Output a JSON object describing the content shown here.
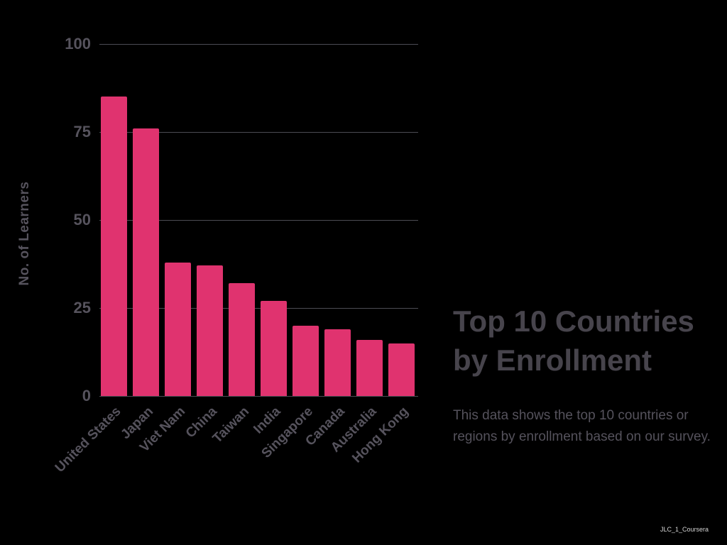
{
  "page": {
    "background": "#000000"
  },
  "info_panel": {
    "title_lines": [
      "Top 10 Countries",
      "by Enrollment"
    ],
    "description_lines": [
      "This data shows the top 10 countries or",
      "regions by enrollment based on our survey."
    ]
  },
  "watermark": "JLC_1_Coursera",
  "chart_data": {
    "type": "bar",
    "title": "Top 10 Countries by Enrollment",
    "subtitle": "This data shows the top 10 countries or regions by enrollment based on our survey.",
    "categories": [
      "United States",
      "Japan",
      "Viet Nam",
      "China",
      "Taiwan",
      "India",
      "Singapore",
      "Canada",
      "Australia",
      "Hong Kong"
    ],
    "values": [
      85,
      76,
      38,
      37,
      32,
      27,
      20,
      19,
      16,
      15
    ],
    "xlabel": "",
    "ylabel": "No. of Learners",
    "ylim": [
      0,
      100
    ],
    "y_ticks": [
      0,
      25,
      50,
      75,
      100
    ],
    "grid": true,
    "legend": false,
    "x_tick_rotation_deg": -45,
    "colors": {
      "bar": "#e0336f",
      "background": "#000000",
      "grid": "#4c4c54",
      "axis_text": "#56535d",
      "title_text": "#47444c",
      "description_text": "#55525c",
      "watermark_text": "#d4d4d4"
    }
  }
}
